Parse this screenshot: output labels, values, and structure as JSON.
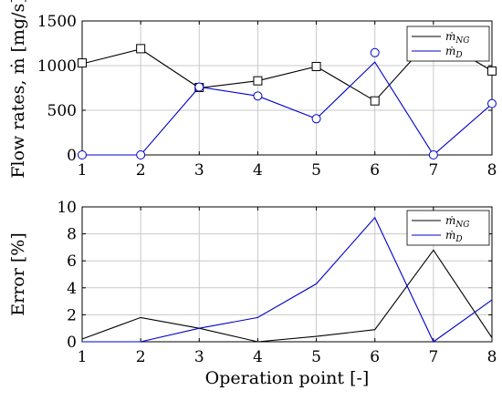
{
  "chart_data": [
    {
      "type": "line",
      "x": [
        1,
        2,
        3,
        4,
        5,
        6,
        7,
        8
      ],
      "xlim": [
        1,
        8
      ],
      "ylim": [
        0,
        1500
      ],
      "yticks": [
        0,
        500,
        1000,
        1500
      ],
      "xticks": [
        1,
        2,
        3,
        4,
        5,
        6,
        7,
        8
      ],
      "ylabel": "Flow rates, ṁ [mg/s]",
      "xlabel": "",
      "grid": true,
      "legend": "top-right",
      "series": [
        {
          "name": "ṁNG",
          "legend_main": "ṁ",
          "legend_sub": "NG",
          "color": "#000000",
          "marker": "square",
          "line": [
            1020,
            1185,
            750,
            830,
            990,
            605,
            1330,
            940
          ],
          "markers": [
            1030,
            1190,
            755,
            830,
            990,
            605,
            null,
            940
          ]
        },
        {
          "name": "ṁD",
          "legend_main": "ṁ",
          "legend_sub": "D",
          "color": "#0000cc",
          "marker": "circle",
          "line": [
            0,
            0,
            760,
            660,
            405,
            1040,
            0,
            570
          ],
          "markers": [
            0,
            0,
            760,
            660,
            405,
            1145,
            0,
            575
          ]
        }
      ]
    },
    {
      "type": "line",
      "x": [
        1,
        2,
        3,
        4,
        5,
        6,
        7,
        8
      ],
      "xlim": [
        1,
        8
      ],
      "ylim": [
        0,
        10
      ],
      "yticks": [
        0,
        2,
        4,
        6,
        8,
        10
      ],
      "xticks": [
        1,
        2,
        3,
        4,
        5,
        6,
        7,
        8
      ],
      "ylabel": "Error [%]",
      "xlabel": "Operation point [-]",
      "grid": true,
      "legend": "top-right",
      "series": [
        {
          "name": "ṁNG",
          "legend_main": "ṁ",
          "legend_sub": "NG",
          "color": "#000000",
          "values": [
            0.2,
            1.8,
            1.0,
            0.0,
            0.4,
            0.9,
            6.8,
            0.3
          ]
        },
        {
          "name": "ṁD",
          "legend_main": "ṁ",
          "legend_sub": "D",
          "color": "#0000cc",
          "values": [
            0.0,
            0.0,
            1.0,
            1.8,
            4.3,
            9.2,
            0.0,
            3.1
          ]
        }
      ]
    }
  ]
}
